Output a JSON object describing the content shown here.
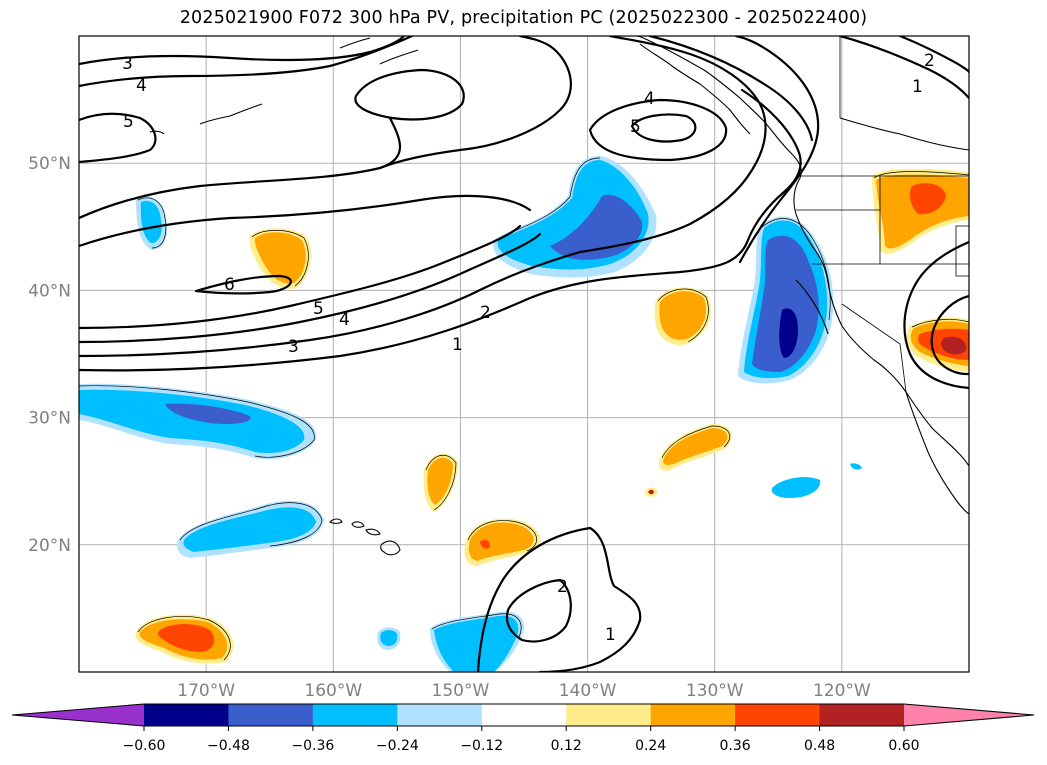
{
  "title": "2025021900 F072 300 hPa PV, precipitation PC (2025022300 - 2025022400)",
  "map": {
    "projection": "PlateCarree",
    "lon_range": [
      -180,
      -110
    ],
    "lat_range": [
      10,
      60
    ],
    "lat_ticks": [
      {
        "value": 20,
        "label": "20°N"
      },
      {
        "value": 30,
        "label": "30°N"
      },
      {
        "value": 40,
        "label": "40°N"
      },
      {
        "value": 50,
        "label": "50°N"
      }
    ],
    "lon_ticks": [
      {
        "value": -170,
        "label": "170°W"
      },
      {
        "value": -160,
        "label": "160°W"
      },
      {
        "value": -150,
        "label": "150°W"
      },
      {
        "value": -140,
        "label": "140°W"
      },
      {
        "value": -130,
        "label": "130°W"
      },
      {
        "value": -120,
        "label": "120°W"
      }
    ],
    "gridlines": true,
    "contour_variable": "300 hPa PV",
    "contour_labels": [
      "3",
      "4",
      "5",
      "6",
      "5",
      "4",
      "3",
      "2",
      "1",
      "4",
      "5",
      "2",
      "1",
      "2",
      "1"
    ],
    "shaded_variable": "precipitation PC"
  },
  "colorbar": {
    "orientation": "horizontal",
    "extend": "both",
    "bounds": [
      -0.6,
      -0.48,
      -0.36,
      -0.24,
      -0.12,
      0.12,
      0.24,
      0.36,
      0.48,
      0.6
    ],
    "tick_labels": [
      "−0.60",
      "−0.48",
      "−0.36",
      "−0.24",
      "−0.12",
      "0.12",
      "0.24",
      "0.36",
      "0.48",
      "0.60"
    ],
    "colors": [
      "#9932CC",
      "#00008B",
      "#3A5FCD",
      "#00BFFF",
      "#B0E2FF",
      "#FFFFFF",
      "#FFEC8B",
      "#FFA500",
      "#FF4500",
      "#B22222",
      "#FF82AB"
    ]
  }
}
